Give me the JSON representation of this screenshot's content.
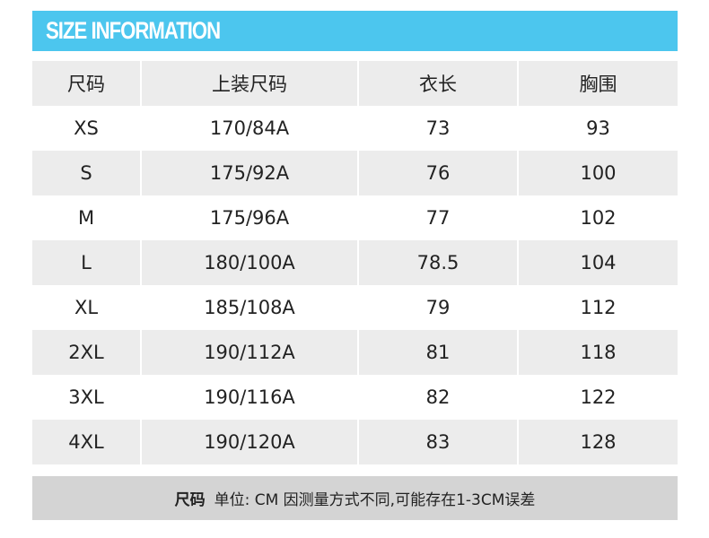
{
  "banner": {
    "title": "SIZE INFORMATION",
    "color": "#4cc6ee"
  },
  "table": {
    "headers": [
      "尺码",
      "上装尺码",
      "衣长",
      "胸围"
    ],
    "rows": [
      [
        "XS",
        "170/84A",
        "73",
        "93"
      ],
      [
        "S",
        "175/92A",
        "76",
        "100"
      ],
      [
        "M",
        "175/96A",
        "77",
        "102"
      ],
      [
        "L",
        "180/100A",
        "78.5",
        "104"
      ],
      [
        "XL",
        "185/108A",
        "79",
        "112"
      ],
      [
        "2XL",
        "190/112A",
        "81",
        "118"
      ],
      [
        "3XL",
        "190/116A",
        "82",
        "122"
      ],
      [
        "4XL",
        "190/120A",
        "83",
        "128"
      ]
    ]
  },
  "footer": {
    "label": "尺码",
    "note": "单位: CM 因测量方式不同,可能存在1-3CM误差"
  }
}
